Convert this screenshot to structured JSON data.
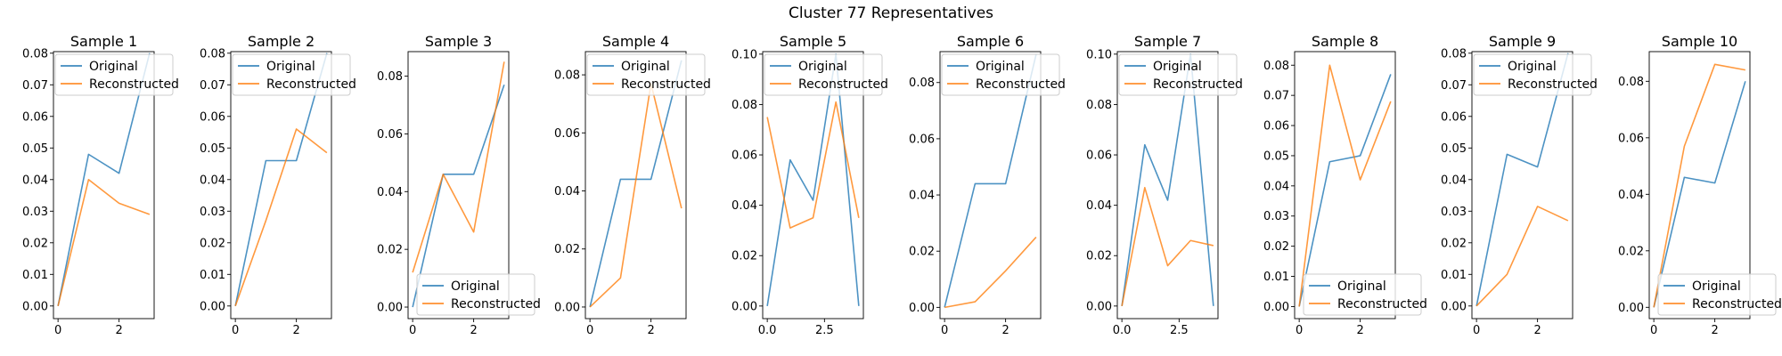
{
  "figure_title": "Cluster 77 Representatives",
  "colors": {
    "original": "#1f77b4",
    "reconstructed": "#ff7f0e"
  },
  "chart_data": [
    {
      "type": "line",
      "title": "Sample 1",
      "x": [
        0,
        1,
        2,
        3
      ],
      "xticks": [
        0,
        2
      ],
      "xlim": [
        -0.15,
        3.15
      ],
      "ylim": [
        -0.004,
        0.0805
      ],
      "yticks": [
        0.0,
        0.01,
        0.02,
        0.03,
        0.04,
        0.05,
        0.06,
        0.07,
        0.08
      ],
      "ytick_decimals": 2,
      "legend": "upper-left",
      "series": [
        {
          "name": "Original",
          "values": [
            0.0,
            0.048,
            0.042,
            0.08
          ]
        },
        {
          "name": "Reconstructed",
          "values": [
            0.0,
            0.04,
            0.0325,
            0.029
          ]
        }
      ]
    },
    {
      "type": "line",
      "title": "Sample 2",
      "x": [
        0,
        1,
        2,
        3
      ],
      "xticks": [
        0,
        2
      ],
      "xlim": [
        -0.15,
        3.15
      ],
      "ylim": [
        -0.004,
        0.0805
      ],
      "yticks": [
        0.0,
        0.01,
        0.02,
        0.03,
        0.04,
        0.05,
        0.06,
        0.07,
        0.08
      ],
      "ytick_decimals": 2,
      "legend": "upper-left",
      "series": [
        {
          "name": "Original",
          "values": [
            0.0,
            0.046,
            0.046,
            0.08
          ]
        },
        {
          "name": "Reconstructed",
          "values": [
            0.0,
            0.027,
            0.056,
            0.0485
          ]
        }
      ]
    },
    {
      "type": "line",
      "title": "Sample 3",
      "x": [
        0,
        1,
        2,
        3
      ],
      "xticks": [
        0,
        2
      ],
      "xlim": [
        -0.15,
        3.15
      ],
      "ylim": [
        -0.004,
        0.0885
      ],
      "yticks": [
        0.0,
        0.02,
        0.04,
        0.06,
        0.08
      ],
      "ytick_decimals": 2,
      "legend": "lower-right",
      "series": [
        {
          "name": "Original",
          "values": [
            0.0,
            0.046,
            0.046,
            0.077
          ]
        },
        {
          "name": "Reconstructed",
          "values": [
            0.012,
            0.046,
            0.026,
            0.085
          ]
        }
      ]
    },
    {
      "type": "line",
      "title": "Sample 4",
      "x": [
        0,
        1,
        2,
        3
      ],
      "xticks": [
        0,
        2
      ],
      "xlim": [
        -0.15,
        3.15
      ],
      "ylim": [
        -0.004,
        0.088
      ],
      "yticks": [
        0.0,
        0.02,
        0.04,
        0.06,
        0.08
      ],
      "ytick_decimals": 2,
      "legend": "upper-left",
      "series": [
        {
          "name": "Original",
          "values": [
            0.0,
            0.044,
            0.044,
            0.085
          ]
        },
        {
          "name": "Reconstructed",
          "values": [
            0.0,
            0.01,
            0.077,
            0.034
          ]
        }
      ]
    },
    {
      "type": "line",
      "title": "Sample 5",
      "x": [
        0,
        1,
        2,
        3,
        4
      ],
      "xticks": [
        0.0,
        2.5
      ],
      "xlim": [
        -0.2,
        4.2
      ],
      "ylim": [
        -0.005,
        0.101
      ],
      "yticks": [
        0.0,
        0.02,
        0.04,
        0.06,
        0.08,
        0.1
      ],
      "ytick_decimals": 2,
      "legend": "upper-left",
      "series": [
        {
          "name": "Original",
          "values": [
            0.0,
            0.058,
            0.042,
            0.1,
            0.0
          ]
        },
        {
          "name": "Reconstructed",
          "values": [
            0.075,
            0.031,
            0.035,
            0.081,
            0.035
          ]
        }
      ]
    },
    {
      "type": "line",
      "title": "Sample 6",
      "x": [
        0,
        1,
        2,
        3
      ],
      "xticks": [
        0,
        2
      ],
      "xlim": [
        -0.15,
        3.15
      ],
      "ylim": [
        -0.004,
        0.091
      ],
      "yticks": [
        0.0,
        0.02,
        0.04,
        0.06,
        0.08
      ],
      "ytick_decimals": 2,
      "legend": "upper-left",
      "series": [
        {
          "name": "Original",
          "values": [
            0.0,
            0.044,
            0.044,
            0.09
          ]
        },
        {
          "name": "Reconstructed",
          "values": [
            0.0,
            0.002,
            0.013,
            0.025
          ]
        }
      ]
    },
    {
      "type": "line",
      "title": "Sample 7",
      "x": [
        0,
        1,
        2,
        3,
        4
      ],
      "xticks": [
        0.0,
        2.5
      ],
      "xlim": [
        -0.2,
        4.2
      ],
      "ylim": [
        -0.005,
        0.101
      ],
      "yticks": [
        0.0,
        0.02,
        0.04,
        0.06,
        0.08,
        0.1
      ],
      "ytick_decimals": 2,
      "legend": "upper-left",
      "series": [
        {
          "name": "Original",
          "values": [
            0.0,
            0.064,
            0.042,
            0.1,
            0.0
          ]
        },
        {
          "name": "Reconstructed",
          "values": [
            0.0,
            0.047,
            0.016,
            0.026,
            0.024
          ]
        }
      ]
    },
    {
      "type": "line",
      "title": "Sample 8",
      "x": [
        0,
        1,
        2,
        3
      ],
      "xticks": [
        0,
        2
      ],
      "xlim": [
        -0.15,
        3.15
      ],
      "ylim": [
        -0.004,
        0.0845
      ],
      "yticks": [
        0.0,
        0.01,
        0.02,
        0.03,
        0.04,
        0.05,
        0.06,
        0.07,
        0.08
      ],
      "ytick_decimals": 2,
      "legend": "lower-right",
      "series": [
        {
          "name": "Original",
          "values": [
            0.0,
            0.048,
            0.05,
            0.077
          ]
        },
        {
          "name": "Reconstructed",
          "values": [
            0.0,
            0.08,
            0.042,
            0.068
          ]
        }
      ]
    },
    {
      "type": "line",
      "title": "Sample 9",
      "x": [
        0,
        1,
        2,
        3
      ],
      "xticks": [
        0,
        2
      ],
      "xlim": [
        -0.15,
        3.15
      ],
      "ylim": [
        -0.004,
        0.0805
      ],
      "yticks": [
        0.0,
        0.01,
        0.02,
        0.03,
        0.04,
        0.05,
        0.06,
        0.07,
        0.08
      ],
      "ytick_decimals": 2,
      "legend": "upper-left",
      "series": [
        {
          "name": "Original",
          "values": [
            0.0,
            0.048,
            0.044,
            0.08
          ]
        },
        {
          "name": "Reconstructed",
          "values": [
            0.0,
            0.01,
            0.0315,
            0.027
          ]
        }
      ]
    },
    {
      "type": "line",
      "title": "Sample 10",
      "x": [
        0,
        1,
        2,
        3
      ],
      "xticks": [
        0,
        2
      ],
      "xlim": [
        -0.15,
        3.15
      ],
      "ylim": [
        -0.004,
        0.0905
      ],
      "yticks": [
        0.0,
        0.02,
        0.04,
        0.06,
        0.08
      ],
      "ytick_decimals": 2,
      "legend": "lower-right",
      "series": [
        {
          "name": "Original",
          "values": [
            0.0,
            0.046,
            0.044,
            0.08
          ]
        },
        {
          "name": "Reconstructed",
          "values": [
            0.0,
            0.057,
            0.086,
            0.084
          ]
        }
      ]
    }
  ]
}
